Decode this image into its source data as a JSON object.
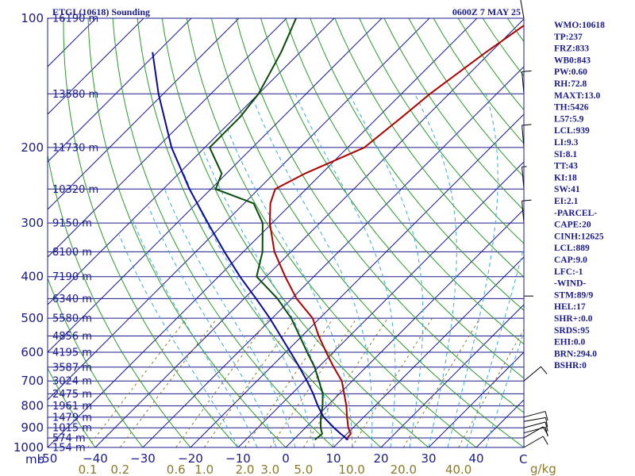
{
  "header": {
    "station_title": "ETGL(10618) Sounding",
    "valid_time": "0600Z  7 MAY 25"
  },
  "chart_data": {
    "type": "skew-t log-p sounding",
    "pressure_axis": {
      "unit": "mb",
      "ticks": [
        100,
        200,
        300,
        400,
        500,
        600,
        700,
        800,
        900,
        1000
      ],
      "range": [
        100,
        1000
      ],
      "scale": "log"
    },
    "height_labels": [
      {
        "p": 100,
        "label": "16190 m"
      },
      {
        "p": 150,
        "label": "13580 m"
      },
      {
        "p": 200,
        "label": "11730 m"
      },
      {
        "p": 250,
        "label": "10320 m"
      },
      {
        "p": 300,
        "label": "9150 m"
      },
      {
        "p": 350,
        "label": "8100 m"
      },
      {
        "p": 400,
        "label": "7190 m"
      },
      {
        "p": 450,
        "label": "6340 m"
      },
      {
        "p": 500,
        "label": "5580 m"
      },
      {
        "p": 550,
        "label": "4856 m"
      },
      {
        "p": 600,
        "label": "4195 m"
      },
      {
        "p": 650,
        "label": "3587 m"
      },
      {
        "p": 700,
        "label": "3024 m"
      },
      {
        "p": 750,
        "label": "2475 m"
      },
      {
        "p": 800,
        "label": "1961 m"
      },
      {
        "p": 850,
        "label": "1479 m"
      },
      {
        "p": 900,
        "label": "1015 m"
      },
      {
        "p": 950,
        "label": "574 m"
      },
      {
        "p": 1000,
        "label": "154 m"
      }
    ],
    "temperature_axis": {
      "unit": "C",
      "ticks": [
        -50,
        -40,
        -30,
        -20,
        -10,
        0,
        10,
        20,
        30,
        40
      ],
      "tick_labels": [
        "-50",
        "−40",
        "−30",
        "−20",
        "−10",
        "0",
        "10",
        "20",
        "30",
        "40"
      ],
      "range": [
        -50,
        50
      ],
      "skewed": true
    },
    "mixing_ratio_axis": {
      "unit": "g/kg",
      "ticks": [
        0.1,
        0.2,
        0.6,
        1.0,
        2.0,
        3.0,
        5.0,
        10.0,
        20.0,
        40.0
      ],
      "tick_labels": [
        "0.1",
        "0.2",
        "0.6",
        "1.0",
        "2.0",
        "3.0",
        "5.0",
        "10.0",
        "20.0",
        "40.0"
      ]
    },
    "series": [
      {
        "key": "temperature",
        "color": "#b00000",
        "points": [
          {
            "p": 960,
            "t": 11.0
          },
          {
            "p": 930,
            "t": 10.8
          },
          {
            "p": 900,
            "t": 9.0
          },
          {
            "p": 850,
            "t": 6.5
          },
          {
            "p": 800,
            "t": 4.0
          },
          {
            "p": 750,
            "t": 1.0
          },
          {
            "p": 700,
            "t": -2.2
          },
          {
            "p": 650,
            "t": -6.8
          },
          {
            "p": 600,
            "t": -11.5
          },
          {
            "p": 550,
            "t": -16.5
          },
          {
            "p": 500,
            "t": -21.5
          },
          {
            "p": 450,
            "t": -29.0
          },
          {
            "p": 400,
            "t": -36.0
          },
          {
            "p": 350,
            "t": -43.5
          },
          {
            "p": 300,
            "t": -50.5
          },
          {
            "p": 270,
            "t": -54.5
          },
          {
            "p": 250,
            "t": -56.5
          },
          {
            "p": 230,
            "t": -53.5
          },
          {
            "p": 200,
            "t": -46.5
          },
          {
            "p": 170,
            "t": -45.0
          },
          {
            "p": 150,
            "t": -44.0
          },
          {
            "p": 120,
            "t": -41.0
          },
          {
            "p": 100,
            "t": -38.0
          }
        ]
      },
      {
        "key": "dewpoint",
        "color": "#0a4a0a",
        "points": [
          {
            "p": 960,
            "t": 4.5
          },
          {
            "p": 930,
            "t": 4.8
          },
          {
            "p": 900,
            "t": 3.2
          },
          {
            "p": 850,
            "t": 1.0
          },
          {
            "p": 800,
            "t": -1.0
          },
          {
            "p": 750,
            "t": -3.5
          },
          {
            "p": 700,
            "t": -7.0
          },
          {
            "p": 650,
            "t": -10.8
          },
          {
            "p": 600,
            "t": -15.5
          },
          {
            "p": 550,
            "t": -20.5
          },
          {
            "p": 500,
            "t": -26.0
          },
          {
            "p": 450,
            "t": -33.0
          },
          {
            "p": 400,
            "t": -42.0
          },
          {
            "p": 350,
            "t": -46.0
          },
          {
            "p": 300,
            "t": -52.0
          },
          {
            "p": 270,
            "t": -58.0
          },
          {
            "p": 250,
            "t": -69.0
          },
          {
            "p": 230,
            "t": -71.0
          },
          {
            "p": 200,
            "t": -79.0
          },
          {
            "p": 170,
            "t": -79.0
          },
          {
            "p": 150,
            "t": -80.0
          },
          {
            "p": 120,
            "t": -84.0
          },
          {
            "p": 100,
            "t": -88.0
          }
        ]
      },
      {
        "key": "parcel",
        "color": "#0a0a9a",
        "points": [
          {
            "p": 960,
            "t": 11.5
          },
          {
            "p": 930,
            "t": 8.7
          },
          {
            "p": 900,
            "t": 6.0
          },
          {
            "p": 850,
            "t": 1.6
          },
          {
            "p": 800,
            "t": -2.0
          },
          {
            "p": 750,
            "t": -5.5
          },
          {
            "p": 700,
            "t": -9.5
          },
          {
            "p": 650,
            "t": -14.0
          },
          {
            "p": 600,
            "t": -19.0
          },
          {
            "p": 550,
            "t": -24.5
          },
          {
            "p": 500,
            "t": -30.5
          },
          {
            "p": 450,
            "t": -37.5
          },
          {
            "p": 400,
            "t": -45.5
          },
          {
            "p": 350,
            "t": -54.0
          },
          {
            "p": 300,
            "t": -63.5
          },
          {
            "p": 250,
            "t": -74.5
          },
          {
            "p": 200,
            "t": -87.0
          },
          {
            "p": 150,
            "t": -101.0
          },
          {
            "p": 120,
            "t": -111.0
          }
        ]
      }
    ],
    "wind_barbs": [
      {
        "p": 1000,
        "dir": 60,
        "kt": 10
      },
      {
        "p": 950,
        "dir": 60,
        "kt": 10
      },
      {
        "p": 925,
        "dir": 75,
        "kt": 10
      },
      {
        "p": 900,
        "dir": 75,
        "kt": 10
      },
      {
        "p": 870,
        "dir": 80,
        "kt": 10
      },
      {
        "p": 850,
        "dir": 75,
        "kt": 10
      },
      {
        "p": 700,
        "dir": 50,
        "kt": 10
      },
      {
        "p": 500,
        "dir": 0,
        "kt": 10
      },
      {
        "p": 300,
        "dir": 355,
        "kt": 10
      },
      {
        "p": 250,
        "dir": 355,
        "kt": 5
      },
      {
        "p": 200,
        "dir": 355,
        "kt": 10
      },
      {
        "p": 150,
        "dir": 355,
        "kt": 10
      },
      {
        "p": 100,
        "dir": 350,
        "kt": 10
      }
    ]
  },
  "indices": [
    "WMO:10618",
    "TP:237",
    "FRZ:833",
    "WB0:843",
    "PW:0.60",
    "RH:72.8",
    "MAXT:13.0",
    "TH:5426",
    "L57:5.9",
    "LCL:939",
    "LI:9.3",
    "SI:8.1",
    "TT:43",
    "KI:18",
    "SW:41",
    "EI:2.1",
    "-PARCEL-",
    "CAPE:20",
    "CINH:12625",
    "LCL:889",
    "CAP:9.0",
    "LFC:-1",
    "-WIND-",
    "STM:89/9",
    "HEL:17",
    "SHR+:0.0",
    "SRDS:95",
    "EHI:0.0",
    "BRN:294.0",
    "BSHR:0"
  ],
  "colors": {
    "isobar": "#1a1a8c",
    "isotherm": "#1a1a8c",
    "dry_adiabat": "#2a9a2a",
    "moist_adiabat": "#3aaad8",
    "mixing_ratio": "#8a7a2a",
    "temperature": "#b00000",
    "dewpoint": "#0a4a0a",
    "parcel": "#0a0a9a",
    "text": "#1a1a8c"
  }
}
